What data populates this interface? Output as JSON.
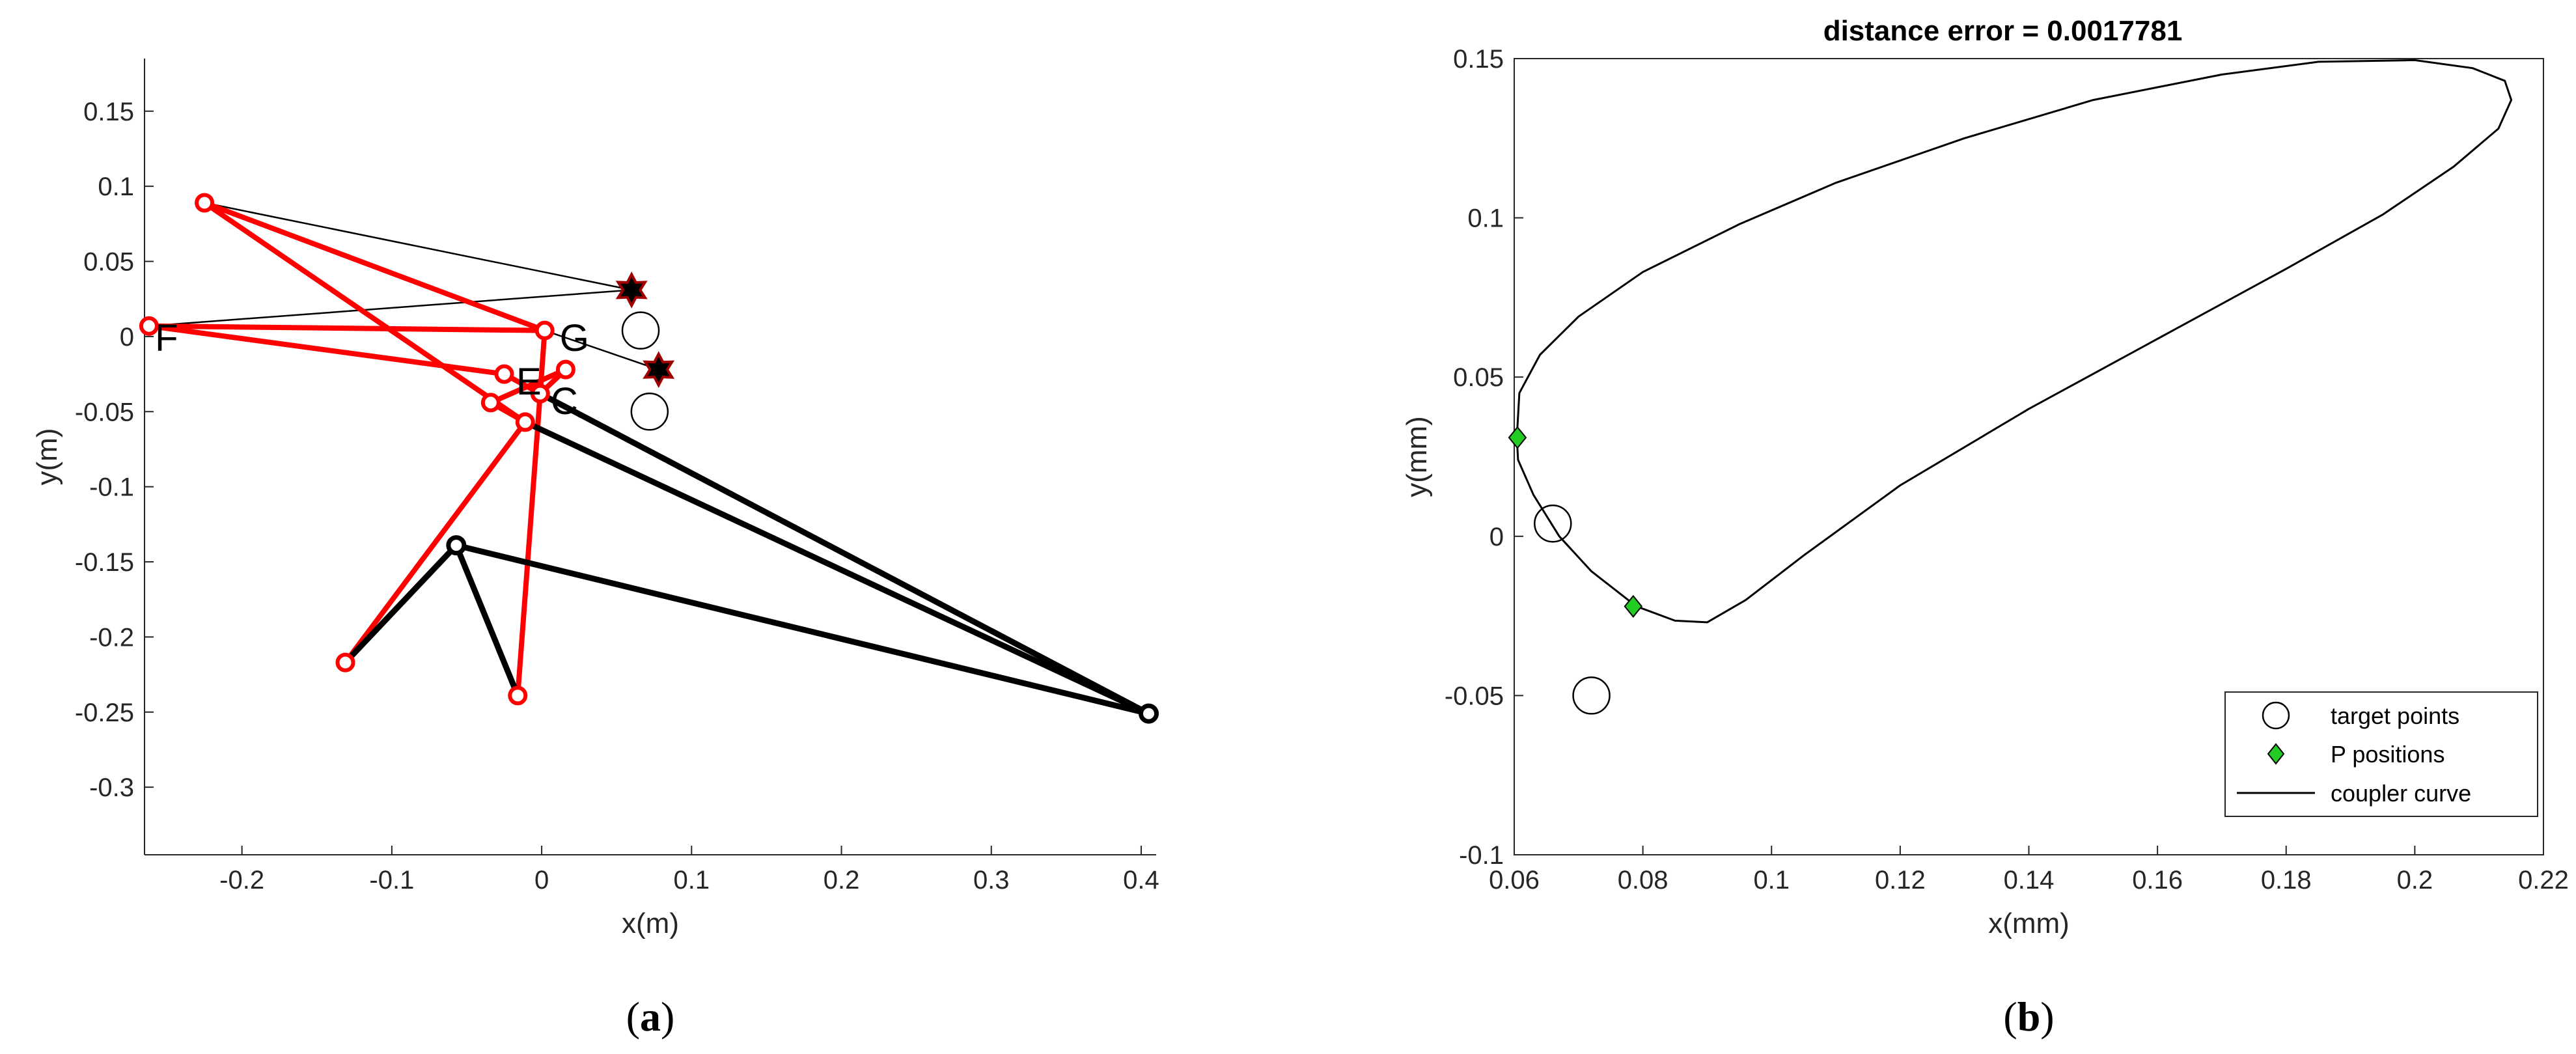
{
  "chart_data": [
    {
      "id": "a",
      "type": "line",
      "panel_label": "a",
      "xlabel": "x(m)",
      "ylabel": "y(m)",
      "xlim": [
        -0.265,
        0.41
      ],
      "ylim": [
        -0.345,
        0.185
      ],
      "xticks": [
        -0.2,
        -0.1,
        0,
        0.1,
        0.2,
        0.3,
        0.4
      ],
      "yticks": [
        0.15,
        0.1,
        0.05,
        0,
        -0.05,
        -0.1,
        -0.15,
        -0.2,
        -0.25,
        -0.3
      ],
      "xtick_labels": [
        "-0.2",
        "-0.1",
        "0",
        "0.1",
        "0.2",
        "0.3",
        "0.4"
      ],
      "ytick_labels": [
        "0.15",
        "0.1",
        "0.05",
        "0",
        "-0.05",
        "-0.1",
        "-0.15",
        "-0.2",
        "-0.25",
        "-0.3"
      ],
      "point_labels": [
        {
          "text": "F",
          "x": -0.258,
          "y": 0.0
        },
        {
          "text": "G",
          "x": 0.012,
          "y": 0.0
        },
        {
          "text": "E",
          "x": -0.017,
          "y": -0.029
        },
        {
          "text": "C",
          "x": 0.006,
          "y": -0.042
        }
      ],
      "black_links": [
        [
          [
            0.405,
            -0.251
          ],
          [
            -0.057,
            -0.139
          ]
        ],
        [
          [
            -0.057,
            -0.139
          ],
          [
            -0.131,
            -0.217
          ]
        ],
        [
          [
            -0.057,
            -0.139
          ],
          [
            -0.016,
            -0.239
          ]
        ],
        [
          [
            0.405,
            -0.251
          ],
          [
            -0.001,
            -0.038
          ]
        ],
        [
          [
            0.405,
            -0.251
          ],
          [
            -0.011,
            -0.057
          ]
        ]
      ],
      "thin_black_lines": [
        [
          [
            -0.225,
            0.089
          ],
          [
            0.06,
            0.031
          ]
        ],
        [
          [
            -0.262,
            0.007
          ],
          [
            0.06,
            0.031
          ]
        ],
        [
          [
            0.002,
            0.004
          ],
          [
            0.078,
            -0.022
          ]
        ]
      ],
      "red_links": [
        [
          [
            -0.225,
            0.089
          ],
          [
            0.002,
            0.004
          ]
        ],
        [
          [
            -0.225,
            0.089
          ],
          [
            -0.011,
            -0.057
          ]
        ],
        [
          [
            -0.262,
            0.007
          ],
          [
            0.002,
            0.004
          ]
        ],
        [
          [
            -0.262,
            0.007
          ],
          [
            -0.025,
            -0.025
          ]
        ],
        [
          [
            -0.025,
            -0.025
          ],
          [
            -0.001,
            -0.038
          ]
        ],
        [
          [
            0.002,
            0.004
          ],
          [
            -0.001,
            -0.038
          ]
        ],
        [
          [
            -0.001,
            -0.038
          ],
          [
            0.016,
            -0.022
          ]
        ],
        [
          [
            0.016,
            -0.022
          ],
          [
            -0.034,
            -0.044
          ]
        ],
        [
          [
            -0.034,
            -0.044
          ],
          [
            -0.011,
            -0.057
          ]
        ],
        [
          [
            -0.011,
            -0.057
          ],
          [
            -0.131,
            -0.217
          ]
        ],
        [
          [
            -0.001,
            -0.038
          ],
          [
            -0.016,
            -0.239
          ]
        ]
      ],
      "red_joints": [
        [
          -0.225,
          0.089
        ],
        [
          -0.262,
          0.007
        ],
        [
          0.002,
          0.004
        ],
        [
          -0.025,
          -0.025
        ],
        [
          -0.001,
          -0.038
        ],
        [
          0.016,
          -0.022
        ],
        [
          -0.034,
          -0.044
        ],
        [
          -0.011,
          -0.057
        ],
        [
          -0.131,
          -0.217
        ],
        [
          -0.016,
          -0.239
        ]
      ],
      "black_joints": [
        [
          -0.057,
          -0.139
        ],
        [
          0.405,
          -0.251
        ]
      ],
      "star_points": [
        [
          0.06,
          0.031
        ],
        [
          0.078,
          -0.022
        ]
      ],
      "target_points": [
        [
          0.066,
          0.004
        ],
        [
          0.072,
          -0.05
        ]
      ],
      "colors": {
        "red": "#ff0000",
        "black": "#000000",
        "star_edge": "#a00000"
      }
    },
    {
      "id": "b",
      "type": "line",
      "panel_label": "b",
      "title": "distance error = 0.0017781",
      "xlabel": "x(mm)",
      "ylabel": "y(mm)",
      "xlim": [
        0.06,
        0.22
      ],
      "ylim": [
        -0.1,
        0.15
      ],
      "xticks": [
        0.06,
        0.08,
        0.1,
        0.12,
        0.14,
        0.16,
        0.18,
        0.2,
        0.22
      ],
      "yticks": [
        0.15,
        0.1,
        0.05,
        0,
        -0.05,
        -0.1
      ],
      "xtick_labels": [
        "0.06",
        "0.08",
        "0.1",
        "0.12",
        "0.14",
        "0.16",
        "0.18",
        "0.2",
        "0.22"
      ],
      "ytick_labels": [
        "0.15",
        "0.1",
        "0.05",
        "0",
        "-0.05",
        "-0.1"
      ],
      "series": [
        {
          "name": "target points",
          "marker": "circle",
          "points": [
            [
              0.066,
              0.004
            ],
            [
              0.072,
              -0.05
            ]
          ]
        },
        {
          "name": "P positions",
          "marker": "diamond",
          "color": "#22cc22",
          "points": [
            [
              0.0605,
              0.031
            ],
            [
              0.0785,
              -0.022
            ]
          ]
        },
        {
          "name": "coupler curve",
          "marker": "line",
          "points": [
            [
              0.0604,
              0.031
            ],
            [
              0.0608,
              0.045
            ],
            [
              0.064,
              0.057
            ],
            [
              0.07,
              0.069
            ],
            [
              0.08,
              0.083
            ],
            [
              0.095,
              0.098
            ],
            [
              0.11,
              0.111
            ],
            [
              0.13,
              0.125
            ],
            [
              0.15,
              0.137
            ],
            [
              0.17,
              0.145
            ],
            [
              0.185,
              0.149
            ],
            [
              0.2,
              0.1495
            ],
            [
              0.209,
              0.147
            ],
            [
              0.214,
              0.143
            ],
            [
              0.215,
              0.137
            ],
            [
              0.213,
              0.128
            ],
            [
              0.206,
              0.116
            ],
            [
              0.195,
              0.101
            ],
            [
              0.18,
              0.084
            ],
            [
              0.16,
              0.062
            ],
            [
              0.14,
              0.04
            ],
            [
              0.12,
              0.016
            ],
            [
              0.105,
              -0.006
            ],
            [
              0.096,
              -0.02
            ],
            [
              0.09,
              -0.027
            ],
            [
              0.085,
              -0.0265
            ],
            [
              0.079,
              -0.022
            ],
            [
              0.072,
              -0.011
            ],
            [
              0.067,
              0.0
            ],
            [
              0.063,
              0.013
            ],
            [
              0.0606,
              0.024
            ],
            [
              0.0604,
              0.031
            ]
          ]
        }
      ],
      "legend": {
        "placement": "bottom-right",
        "entries": [
          "target points",
          "P positions",
          "coupler curve"
        ]
      }
    }
  ]
}
